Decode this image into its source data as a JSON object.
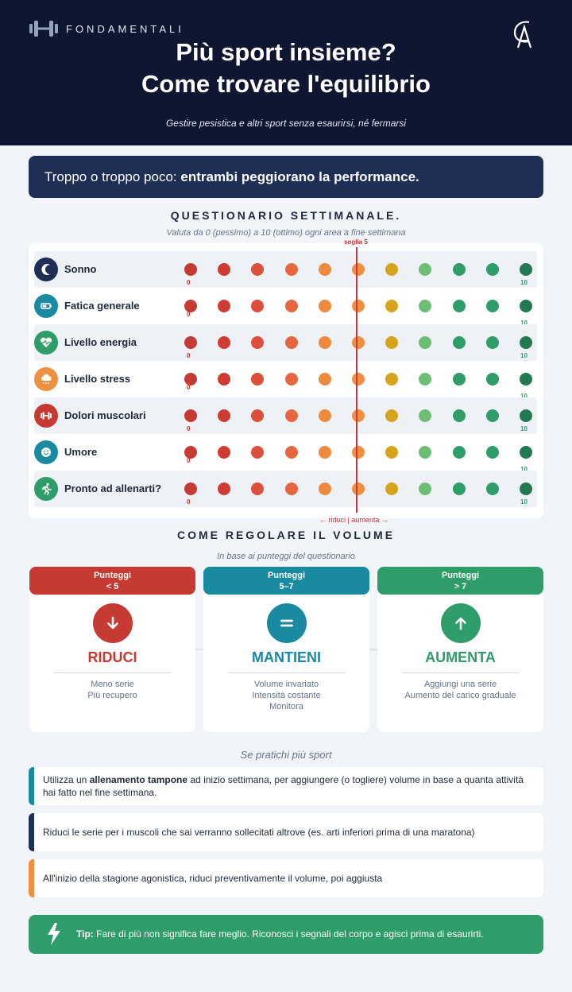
{
  "header": {
    "brand": "FONDAMENTALI",
    "title_line1": "Più sport insieme?",
    "title_line2": "Come trovare l'equilibrio",
    "subtitle": "Gestire pesistica e altri sport senza esaurirsi, né fermarsi"
  },
  "banner": {
    "prefix": "Troppo o troppo poco: ",
    "bold": "entrambi peggiorano la performance."
  },
  "questionnaire": {
    "title": "QUESTIONARIO SETTIMANALE.",
    "subtitle": "Valuta da 0 (pessimo) a 10 (ottimo) ogni area a fine settimana",
    "threshold_label": "soglia 5",
    "threshold_value": 5,
    "threshold_hint": "← riduci  |  aumenta →",
    "min_label": "0",
    "max_label": "10",
    "scale_colors": [
      "#c53a32",
      "#cd3b33",
      "#dd4e3c",
      "#e6673f",
      "#ed8a3e",
      "#ef9040",
      "#d6a41c",
      "#6dbe74",
      "#2e9d6a",
      "#2e9d6a",
      "#237a52"
    ],
    "items": [
      {
        "label": "Sonno",
        "icon": "moon-icon",
        "color": "#1f2e55"
      },
      {
        "label": "Fatica generale",
        "icon": "battery-icon",
        "color": "#1a8aa0"
      },
      {
        "label": "Livello energia",
        "icon": "heart-pulse-icon",
        "color": "#2e9d6a"
      },
      {
        "label": "Livello stress",
        "icon": "storm-cloud-icon",
        "color": "#ef9040"
      },
      {
        "label": "Dolori muscolari",
        "icon": "dumbbell-icon",
        "color": "#c53a32"
      },
      {
        "label": "Umore",
        "icon": "smile-icon",
        "color": "#1a8aa0"
      },
      {
        "label": "Pronto ad allenarti?",
        "icon": "runner-icon",
        "color": "#2e9d6a"
      }
    ]
  },
  "volume": {
    "title": "COME REGOLARE IL VOLUME",
    "subtitle": "In base ai punteggi del questionario",
    "cards": [
      {
        "head1": "Punteggi",
        "head2": "< 5",
        "title": "RIDUCI",
        "color": "#c53a32",
        "icon": "arrow-down-icon",
        "lines": [
          "Meno serie",
          "Più recupero"
        ]
      },
      {
        "head1": "Punteggi",
        "head2": "5–7",
        "title": "MANTIENI",
        "color": "#1a8aa0",
        "icon": "equals-icon",
        "lines": [
          "Volume invariato",
          "Intensità costante",
          "Monitora"
        ]
      },
      {
        "head1": "Punteggi",
        "head2": "> 7",
        "title": "AUMENTA",
        "color": "#2e9d6a",
        "icon": "arrow-up-icon",
        "lines": [
          "Aggiungi una serie",
          "Aumento del carico graduale"
        ]
      }
    ]
  },
  "multi_sport": {
    "title": "Se pratichi più sport",
    "tips": [
      {
        "before": "Utilizza un ",
        "bold": "allenamento tampone",
        "after": " ad inizio settimana, per aggiungere (o togliere) volume in base a quanta attività hai fatto nel fine settimana.",
        "color": "#1a8aa0"
      },
      {
        "before": "Riduci le serie per i muscoli che sai verranno sollecitati altrove (es. arti inferiori prima di una maratona)",
        "bold": "",
        "after": "",
        "color": "#1f2e55"
      },
      {
        "before": "All'inizio della stagione agonistica, riduci preventivamente il volume, poi aggiusta",
        "bold": "",
        "after": "",
        "color": "#ef9040"
      }
    ]
  },
  "footer_tip": {
    "label": "Tip:",
    "text": " Fare di più non significa fare meglio. Riconosci i segnali del corpo e agisci prima di esaurirti."
  }
}
